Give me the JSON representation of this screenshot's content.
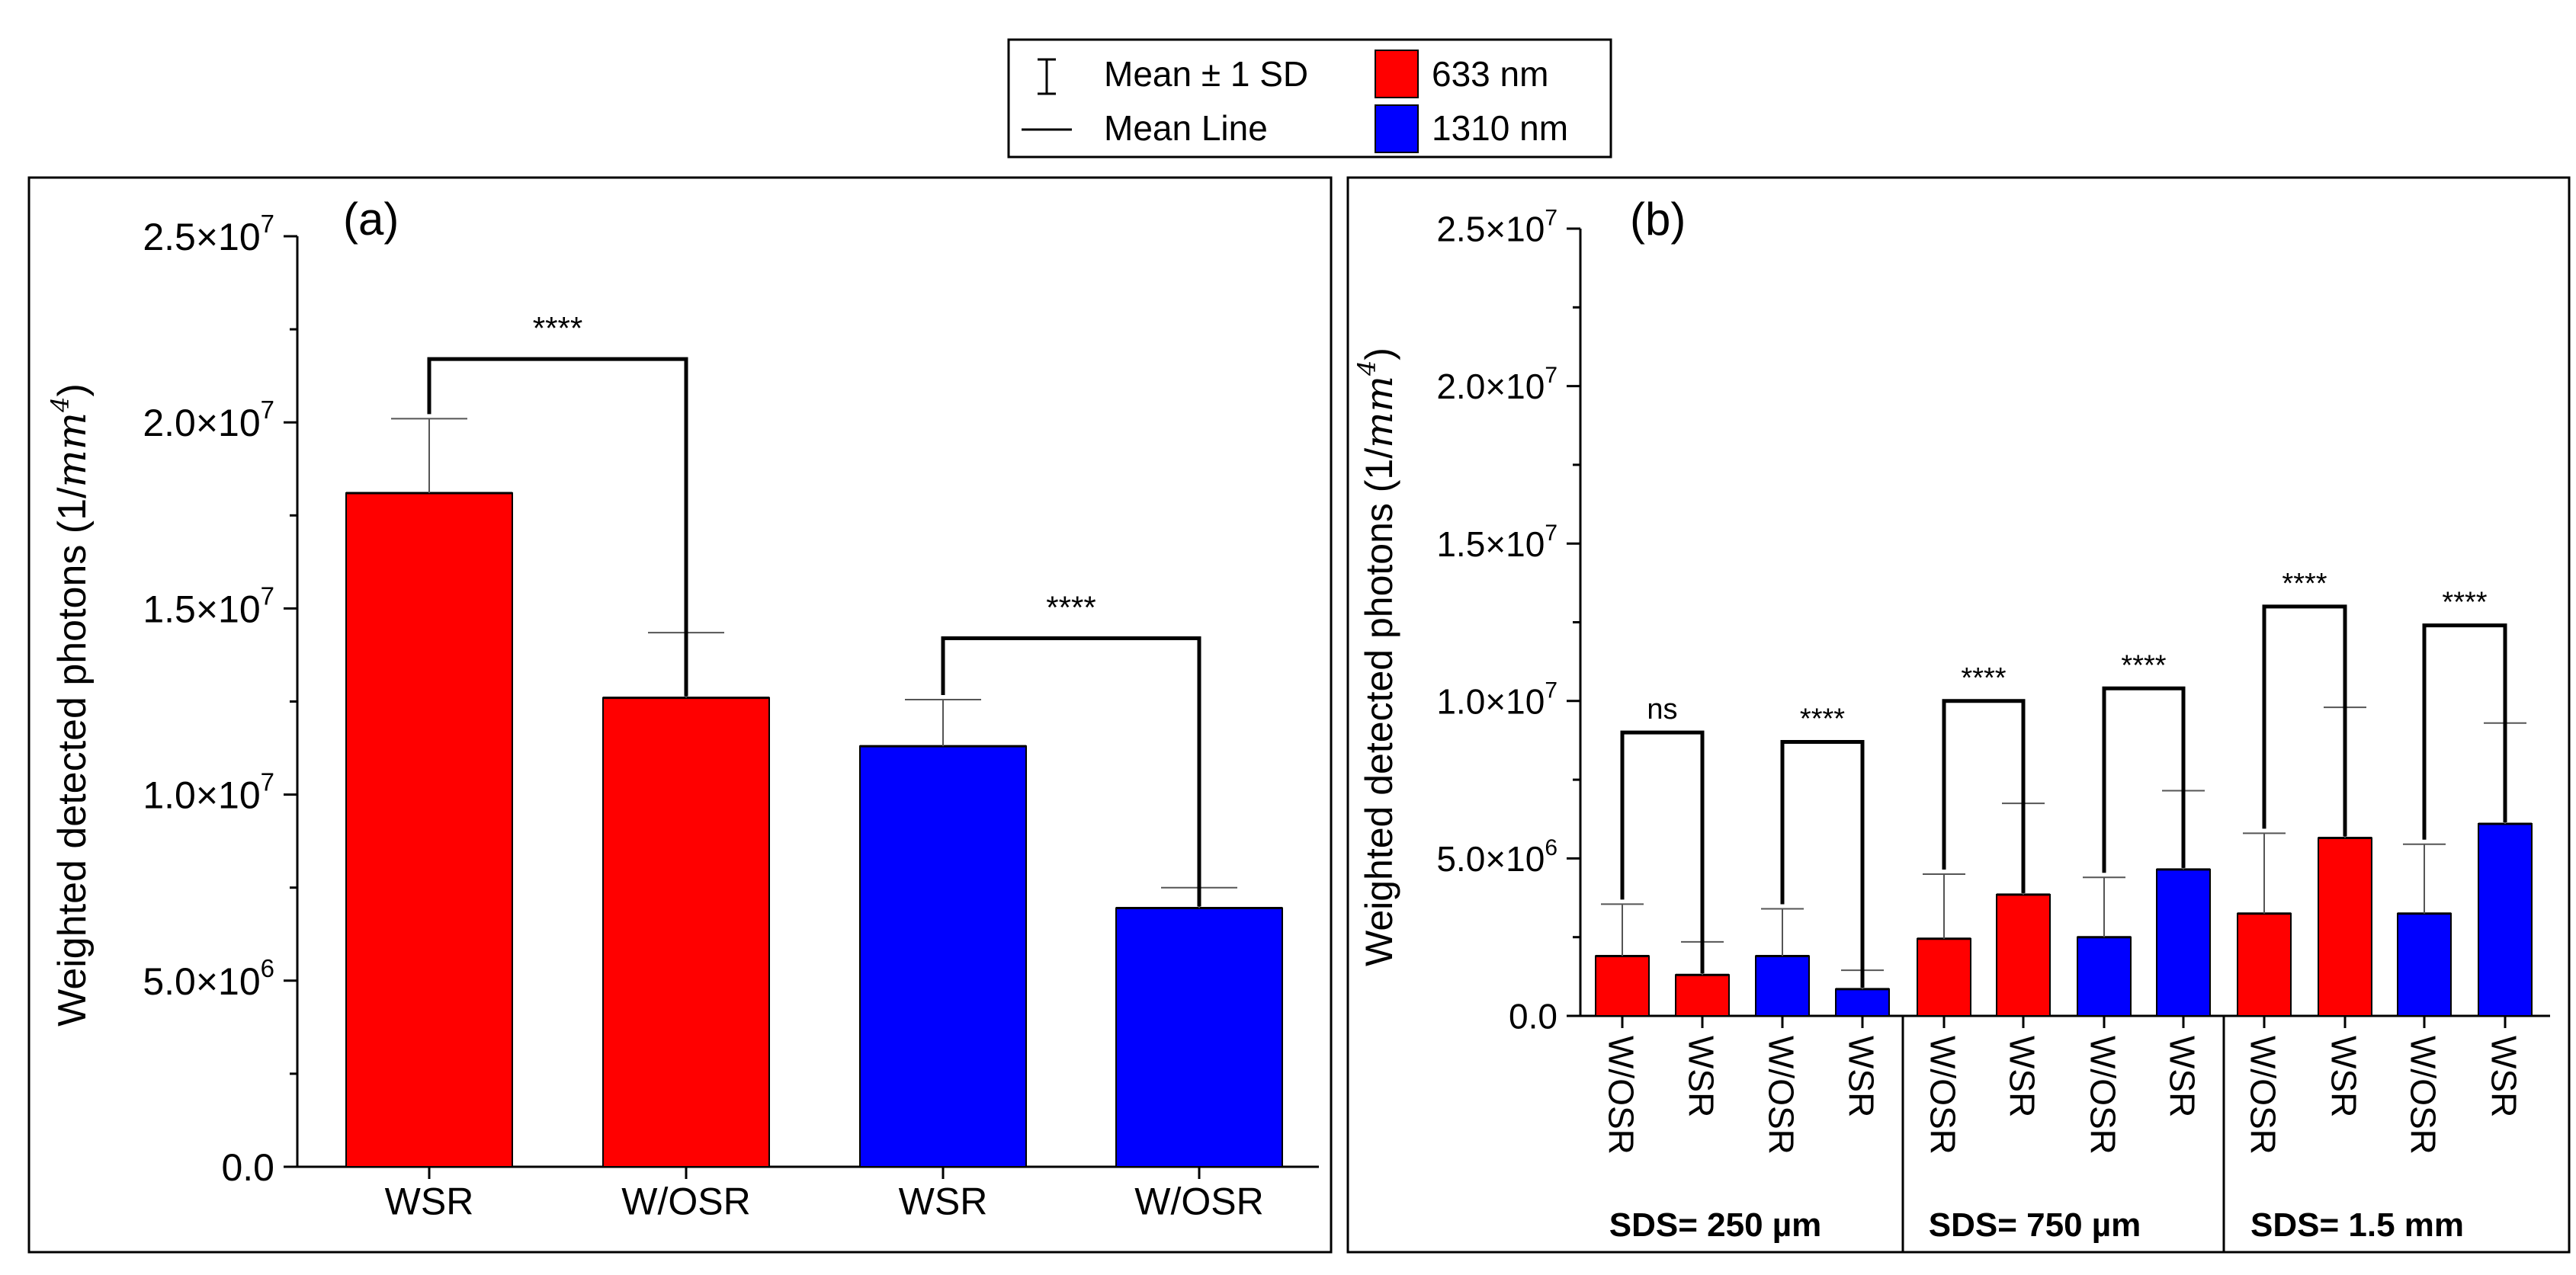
{
  "colors": {
    "c633": "#ff0000",
    "c1310": "#0000ff",
    "frame": "#000000"
  },
  "legend": {
    "sd_label": "Mean ± 1 SD",
    "mean_label": "Mean Line",
    "series_633": "633 nm",
    "series_1310": "1310 nm"
  },
  "panel_a": {
    "label": "(a)",
    "ylabel_prefix": "Weighted detected photons (1/",
    "ylabel_unit_mm": "mm",
    "ylabel_unit_exp": "4",
    "ylabel_suffix": ")",
    "y_ticks": [
      {
        "v": 0,
        "m": "0.0",
        "e": ""
      },
      {
        "v": 5000000,
        "m": "5.0×10",
        "e": "6"
      },
      {
        "v": 10000000,
        "m": "1.0×10",
        "e": "7"
      },
      {
        "v": 15000000,
        "m": "1.5×10",
        "e": "7"
      },
      {
        "v": 20000000,
        "m": "2.0×10",
        "e": "7"
      },
      {
        "v": 25000000,
        "m": "2.5×10",
        "e": "7"
      }
    ]
  },
  "panel_b": {
    "label": "(b)",
    "ylabel_prefix": "Weighted detected photons (1/",
    "ylabel_unit_mm": "mm",
    "ylabel_unit_exp": "4",
    "ylabel_suffix": ")",
    "groups": [
      "SDS= 250 µm",
      "SDS= 750 µm",
      "SDS= 1.5 mm"
    ],
    "y_ticks": [
      {
        "v": 0,
        "m": "0.0",
        "e": ""
      },
      {
        "v": 5000000,
        "m": "5.0×10",
        "e": "6"
      },
      {
        "v": 10000000,
        "m": "1.0×10",
        "e": "7"
      },
      {
        "v": 15000000,
        "m": "1.5×10",
        "e": "7"
      },
      {
        "v": 20000000,
        "m": "2.0×10",
        "e": "7"
      },
      {
        "v": 25000000,
        "m": "2.5×10",
        "e": "7"
      }
    ]
  },
  "chart_data": [
    {
      "type": "bar",
      "panel": "(a)",
      "ylim": [
        0,
        25000000
      ],
      "ylabel": "Weighted detected photons (1/mm⁴)",
      "categories": [
        "WSR",
        "W/OSR",
        "WSR",
        "W/OSR"
      ],
      "bars": [
        {
          "category": "WSR",
          "series": "633 nm",
          "mean": 18100000,
          "sd": 2000000
        },
        {
          "category": "W/OSR",
          "series": "633 nm",
          "mean": 12600000,
          "sd": 1750000
        },
        {
          "category": "WSR",
          "series": "1310 nm",
          "mean": 11300000,
          "sd": 1250000
        },
        {
          "category": "W/OSR",
          "series": "1310 nm",
          "mean": 6950000,
          "sd": 550000
        }
      ],
      "significance": [
        {
          "from": 0,
          "to": 1,
          "label": "****",
          "level": 21700000
        },
        {
          "from": 2,
          "to": 3,
          "label": "****",
          "level": 14200000
        }
      ]
    },
    {
      "type": "bar",
      "panel": "(b)",
      "ylim": [
        0,
        25000000
      ],
      "ylabel": "Weighted detected photons (1/mm⁴)",
      "categories": [
        "W/OSR",
        "WSR",
        "W/OSR",
        "WSR",
        "W/OSR",
        "WSR",
        "W/OSR",
        "WSR",
        "W/OSR",
        "WSR",
        "W/OSR",
        "WSR"
      ],
      "bars": [
        {
          "category": "W/OSR",
          "series": "633 nm",
          "group": "SDS= 250 µm",
          "mean": 1900000,
          "sd": 1650000
        },
        {
          "category": "WSR",
          "series": "633 nm",
          "group": "SDS= 250 µm",
          "mean": 1300000,
          "sd": 1050000
        },
        {
          "category": "W/OSR",
          "series": "1310 nm",
          "group": "SDS= 250 µm",
          "mean": 1900000,
          "sd": 1500000
        },
        {
          "category": "WSR",
          "series": "1310 nm",
          "group": "SDS= 250 µm",
          "mean": 850000,
          "sd": 600000
        },
        {
          "category": "W/OSR",
          "series": "633 nm",
          "group": "SDS= 750 µm",
          "mean": 2450000,
          "sd": 2050000
        },
        {
          "category": "WSR",
          "series": "633 nm",
          "group": "SDS= 750 µm",
          "mean": 3850000,
          "sd": 2900000
        },
        {
          "category": "W/OSR",
          "series": "1310 nm",
          "group": "SDS= 750 µm",
          "mean": 2500000,
          "sd": 1900000
        },
        {
          "category": "WSR",
          "series": "1310 nm",
          "group": "SDS= 750 µm",
          "mean": 4650000,
          "sd": 2500000
        },
        {
          "category": "W/OSR",
          "series": "633 nm",
          "group": "SDS= 1.5 mm",
          "mean": 3250000,
          "sd": 2550000
        },
        {
          "category": "WSR",
          "series": "633 nm",
          "group": "SDS= 1.5 mm",
          "mean": 5650000,
          "sd": 4150000
        },
        {
          "category": "W/OSR",
          "series": "1310 nm",
          "group": "SDS= 1.5 mm",
          "mean": 3250000,
          "sd": 2200000
        },
        {
          "category": "WSR",
          "series": "1310 nm",
          "group": "SDS= 1.5 mm",
          "mean": 6100000,
          "sd": 3200000
        }
      ],
      "significance": [
        {
          "from": 0,
          "to": 1,
          "label": "ns",
          "level": 9000000
        },
        {
          "from": 2,
          "to": 3,
          "label": "****",
          "level": 8700000
        },
        {
          "from": 4,
          "to": 5,
          "label": "****",
          "level": 10000000
        },
        {
          "from": 6,
          "to": 7,
          "label": "****",
          "level": 10400000
        },
        {
          "from": 8,
          "to": 9,
          "label": "****",
          "level": 13000000
        },
        {
          "from": 10,
          "to": 11,
          "label": "****",
          "level": 12400000
        }
      ]
    }
  ]
}
